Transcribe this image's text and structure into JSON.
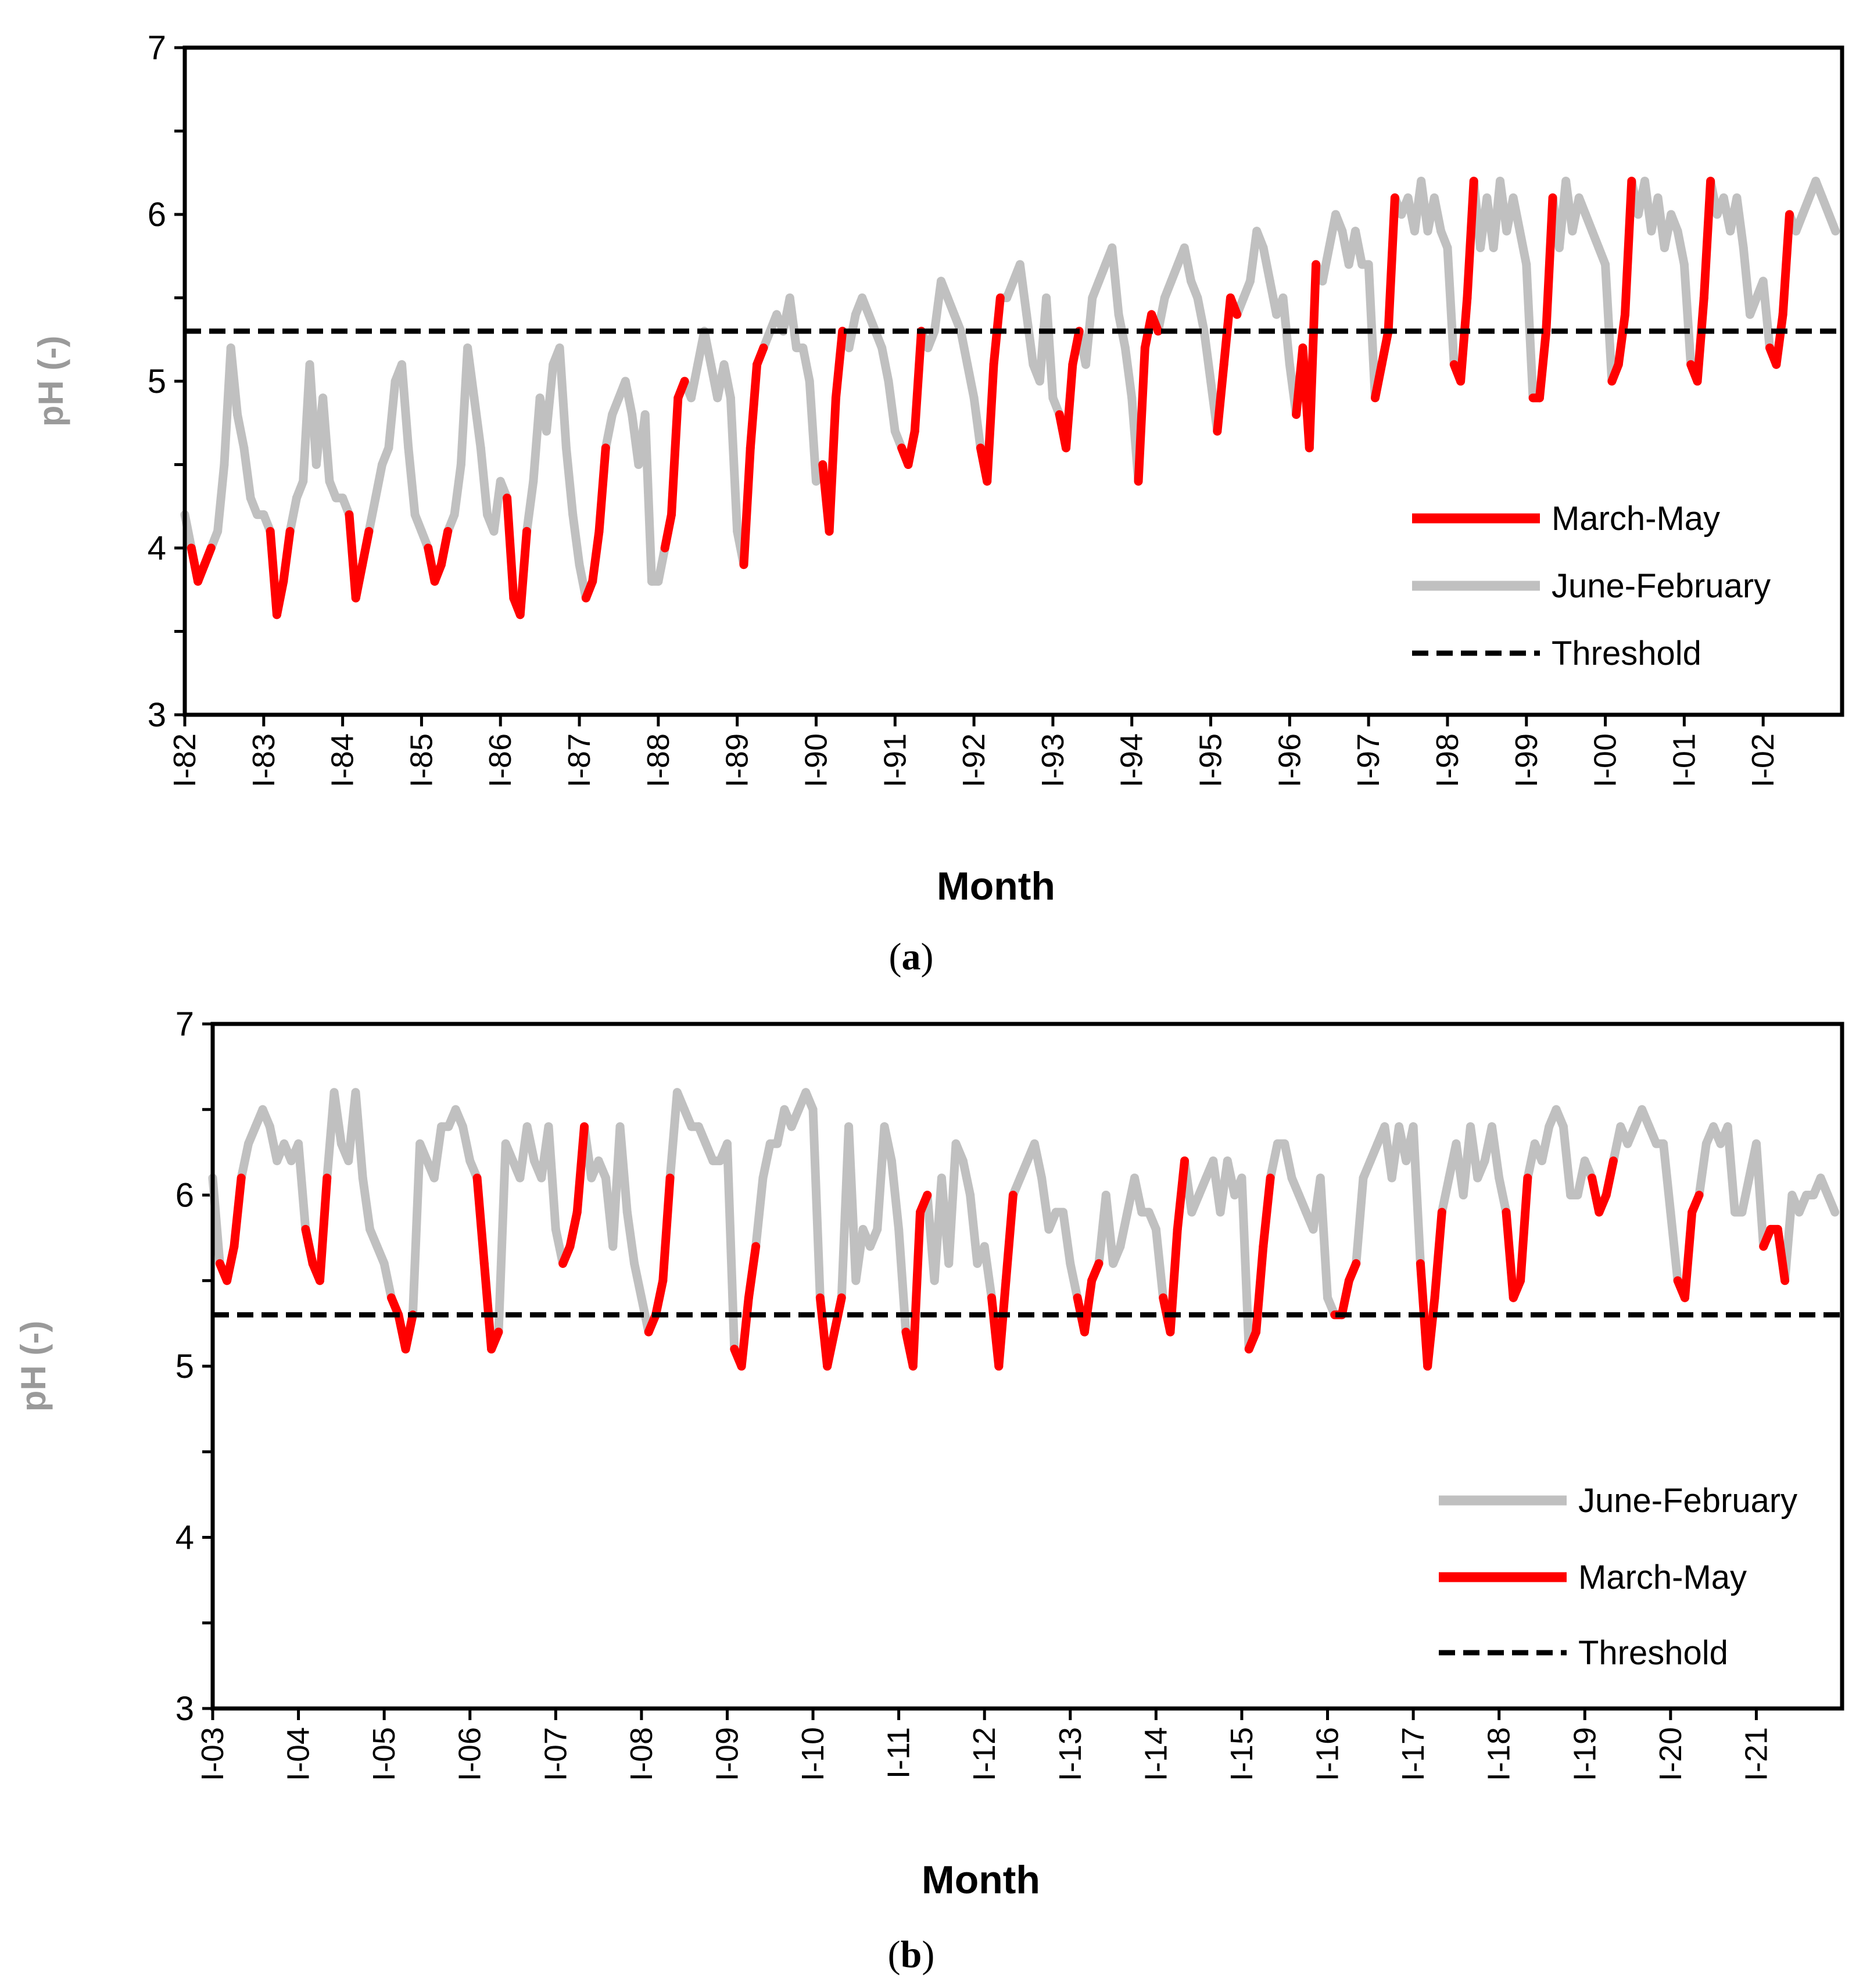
{
  "colors": {
    "march_may": "#ff0000",
    "june_february": "#c0c0c0",
    "threshold": "#000000",
    "ylabel": "#9a9a9a"
  },
  "chart_data": [
    {
      "type": "line",
      "panel_caption": "(a)",
      "caption_parts": [
        "(",
        "a",
        ")"
      ],
      "xlabel": "Month",
      "ylabel": "pH (-)",
      "ylim": [
        3,
        7
      ],
      "yticks": [
        3,
        4,
        5,
        6,
        7
      ],
      "x_start_year": 1982,
      "x_end_year": 2002,
      "x_tick_labels": [
        "I-82",
        "I-83",
        "I-84",
        "I-85",
        "I-86",
        "I-87",
        "I-88",
        "I-89",
        "I-90",
        "I-91",
        "I-92",
        "I-93",
        "I-94",
        "I-95",
        "I-96",
        "I-97",
        "I-98",
        "I-99",
        "I-00",
        "I-01",
        "I-02"
      ],
      "legend_position": "bottom-right",
      "legend": [
        "March-May",
        "June-February",
        "Threshold"
      ],
      "series": [
        {
          "name": "March-May",
          "color": "#ff0000"
        },
        {
          "name": "June-February",
          "color": "#c0c0c0"
        },
        {
          "name": "Threshold",
          "color": "#000000",
          "style": "dashed",
          "value": 5.3
        }
      ],
      "monthly_pH": [
        [
          4.2,
          4.0,
          3.8,
          3.9,
          4.0,
          4.1,
          4.5,
          5.2,
          4.8,
          4.6,
          4.3,
          4.2
        ],
        [
          4.2,
          4.1,
          3.6,
          3.8,
          4.1,
          4.3,
          4.4,
          5.1,
          4.5,
          4.9,
          4.4,
          4.3
        ],
        [
          4.3,
          4.2,
          3.7,
          3.9,
          4.1,
          4.3,
          4.5,
          4.6,
          5.0,
          5.1,
          4.6,
          4.2
        ],
        [
          4.1,
          4.0,
          3.8,
          3.9,
          4.1,
          4.2,
          4.5,
          5.2,
          4.9,
          4.6,
          4.2,
          4.1
        ],
        [
          4.4,
          4.3,
          3.7,
          3.6,
          4.1,
          4.4,
          4.9,
          4.7,
          5.1,
          5.2,
          4.6,
          4.2
        ],
        [
          3.9,
          3.7,
          3.8,
          4.1,
          4.6,
          4.8,
          4.9,
          5.0,
          4.8,
          4.5,
          4.8,
          3.8
        ],
        [
          3.8,
          4.0,
          4.2,
          4.9,
          5.0,
          4.9,
          5.1,
          5.3,
          5.1,
          4.9,
          5.1,
          4.9
        ],
        [
          4.1,
          3.9,
          4.6,
          5.1,
          5.2,
          5.3,
          5.4,
          5.3,
          5.5,
          5.2,
          5.2,
          5.0
        ],
        [
          4.4,
          4.5,
          4.1,
          4.9,
          5.3,
          5.2,
          5.4,
          5.5,
          5.4,
          5.3,
          5.2,
          5.0
        ],
        [
          4.7,
          4.6,
          4.5,
          4.7,
          5.3,
          5.2,
          5.3,
          5.6,
          5.5,
          5.4,
          5.3,
          5.1
        ],
        [
          4.9,
          4.6,
          4.4,
          5.1,
          5.5,
          5.5,
          5.6,
          5.7,
          5.4,
          5.1,
          5.0,
          5.5
        ],
        [
          4.9,
          4.8,
          4.6,
          5.1,
          5.3,
          5.1,
          5.5,
          5.6,
          5.7,
          5.8,
          5.4,
          5.2
        ],
        [
          4.9,
          4.4,
          5.2,
          5.4,
          5.3,
          5.5,
          5.6,
          5.7,
          5.8,
          5.6,
          5.5,
          5.3
        ],
        [
          5.0,
          4.7,
          5.1,
          5.5,
          5.4,
          5.5,
          5.6,
          5.9,
          5.8,
          5.6,
          5.4,
          5.5
        ],
        [
          5.1,
          4.8,
          5.2,
          4.6,
          5.7,
          5.6,
          5.8,
          6.0,
          5.9,
          5.7,
          5.9,
          5.7
        ],
        [
          5.7,
          4.9,
          5.1,
          5.3,
          6.1,
          6.0,
          6.1,
          5.9,
          6.2,
          5.9,
          6.1,
          5.9
        ],
        [
          5.8,
          5.1,
          5.0,
          5.5,
          6.2,
          5.8,
          6.1,
          5.8,
          6.2,
          5.9,
          6.1,
          5.9
        ],
        [
          5.7,
          4.9,
          4.9,
          5.3,
          6.1,
          5.8,
          6.2,
          5.9,
          6.1,
          6.0,
          5.9,
          5.8
        ],
        [
          5.7,
          5.0,
          5.1,
          5.4,
          6.2,
          6.0,
          6.2,
          5.9,
          6.1,
          5.8,
          6.0,
          5.9
        ],
        [
          5.7,
          5.1,
          5.0,
          5.5,
          6.2,
          6.0,
          6.1,
          5.9,
          6.1,
          5.8,
          5.4,
          5.5
        ],
        [
          5.6,
          5.2,
          5.1,
          5.4,
          6.0,
          5.9,
          6.0,
          6.1,
          6.2,
          6.1,
          6.0,
          5.9
        ]
      ]
    },
    {
      "type": "line",
      "panel_caption": "(b)",
      "caption_parts": [
        "(",
        "b",
        ")"
      ],
      "xlabel": "Month",
      "ylabel": "pH (-)",
      "ylim": [
        3,
        7
      ],
      "yticks": [
        3,
        4,
        5,
        6,
        7
      ],
      "x_start_year": 2003,
      "x_end_year": 2021,
      "x_tick_labels": [
        "I-03",
        "I-04",
        "I-05",
        "I-06",
        "I-07",
        "I-08",
        "I-09",
        "I-10",
        "I-11",
        "I-12",
        "I-13",
        "I-14",
        "I-15",
        "I-16",
        "I-17",
        "I-18",
        "I-19",
        "I-20",
        "I-21"
      ],
      "legend_position": "bottom-right",
      "legend": [
        "June-February",
        "March-May",
        "Threshold"
      ],
      "series": [
        {
          "name": "June-February",
          "color": "#c0c0c0"
        },
        {
          "name": "March-May",
          "color": "#ff0000"
        },
        {
          "name": "Threshold",
          "color": "#000000",
          "style": "dashed",
          "value": 5.3
        }
      ],
      "monthly_pH": [
        [
          6.1,
          5.6,
          5.5,
          5.7,
          6.1,
          6.3,
          6.4,
          6.5,
          6.4,
          6.2,
          6.3,
          6.2
        ],
        [
          6.3,
          5.8,
          5.6,
          5.5,
          6.1,
          6.6,
          6.3,
          6.2,
          6.6,
          6.1,
          5.8,
          5.7
        ],
        [
          5.6,
          5.4,
          5.3,
          5.1,
          5.3,
          6.3,
          6.2,
          6.1,
          6.4,
          6.4,
          6.5,
          6.4
        ],
        [
          6.2,
          6.1,
          5.6,
          5.1,
          5.2,
          6.3,
          6.2,
          6.1,
          6.4,
          6.2,
          6.1,
          6.4
        ],
        [
          5.8,
          5.6,
          5.7,
          5.9,
          6.4,
          6.1,
          6.2,
          6.1,
          5.7,
          6.4,
          5.9,
          5.6
        ],
        [
          5.4,
          5.2,
          5.3,
          5.5,
          6.1,
          6.6,
          6.5,
          6.4,
          6.4,
          6.3,
          6.2,
          6.2
        ],
        [
          6.3,
          5.1,
          5.0,
          5.4,
          5.7,
          6.1,
          6.3,
          6.3,
          6.5,
          6.4,
          6.5,
          6.6
        ],
        [
          6.5,
          5.4,
          5.0,
          5.2,
          5.4,
          6.4,
          5.5,
          5.8,
          5.7,
          5.8,
          6.4,
          6.2
        ],
        [
          5.8,
          5.2,
          5.0,
          5.9,
          6.0,
          5.5,
          6.1,
          5.6,
          6.3,
          6.2,
          6.0,
          5.6
        ],
        [
          5.7,
          5.4,
          5.0,
          5.5,
          6.0,
          6.1,
          6.2,
          6.3,
          6.1,
          5.8,
          5.9,
          5.9
        ],
        [
          5.6,
          5.4,
          5.2,
          5.5,
          5.6,
          6.0,
          5.6,
          5.7,
          5.9,
          6.1,
          5.9,
          5.9
        ],
        [
          5.8,
          5.4,
          5.2,
          5.8,
          6.2,
          5.9,
          6.0,
          6.1,
          6.2,
          5.9,
          6.2,
          6.0
        ],
        [
          6.1,
          5.1,
          5.2,
          5.7,
          6.1,
          6.3,
          6.3,
          6.1,
          6.0,
          5.9,
          5.8,
          6.1
        ],
        [
          5.4,
          5.3,
          5.3,
          5.5,
          5.6,
          6.1,
          6.2,
          6.3,
          6.4,
          6.1,
          6.4,
          6.2
        ],
        [
          6.4,
          5.6,
          5.0,
          5.4,
          5.9,
          6.1,
          6.3,
          6.0,
          6.4,
          6.1,
          6.2,
          6.4
        ],
        [
          6.1,
          5.9,
          5.4,
          5.5,
          6.1,
          6.3,
          6.2,
          6.4,
          6.5,
          6.4,
          6.0,
          6.0
        ],
        [
          6.2,
          6.1,
          5.9,
          6.0,
          6.2,
          6.4,
          6.3,
          6.4,
          6.5,
          6.4,
          6.3,
          6.3
        ],
        [
          5.9,
          5.5,
          5.4,
          5.9,
          6.0,
          6.3,
          6.4,
          6.3,
          6.4,
          5.9,
          5.9,
          6.1
        ],
        [
          6.3,
          5.7,
          5.8,
          5.8,
          5.5,
          6.0,
          5.9,
          6.0,
          6.0,
          6.1,
          6.0,
          5.9
        ]
      ]
    }
  ]
}
